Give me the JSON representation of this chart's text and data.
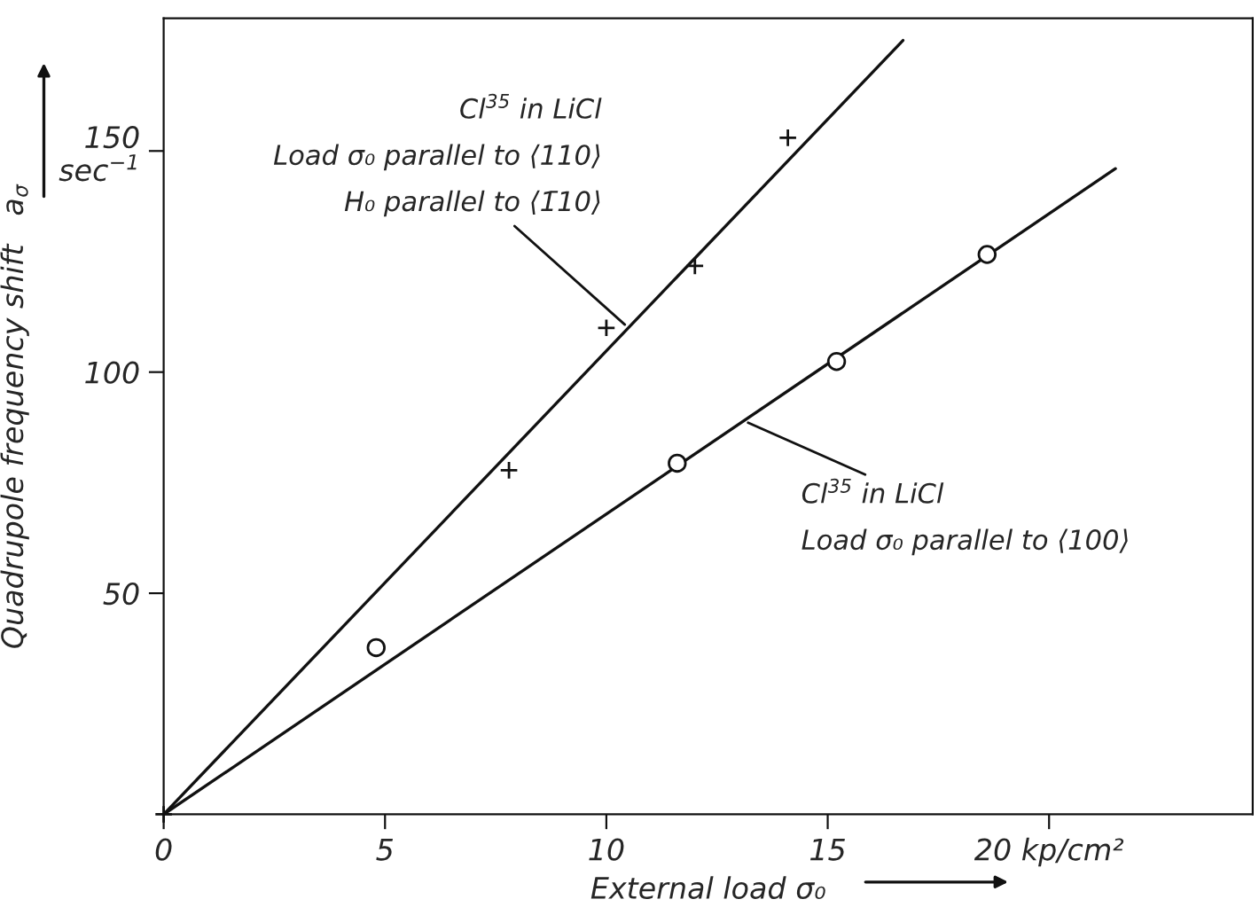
{
  "chart_data": {
    "type": "scatter",
    "xlabel": "External load σ₀",
    "ylabel": "Quadrupole frequency shift   a$_{σ}$",
    "xlim": [
      0,
      24.6
    ],
    "ylim": [
      0,
      180
    ],
    "xticks": [
      0,
      5,
      10,
      15,
      {
        "value": 20,
        "label": "20 kp/cm²"
      }
    ],
    "yticks": [
      {
        "value": 50,
        "label": "50"
      },
      {
        "value": 100,
        "label": "100"
      },
      {
        "value": 150,
        "label": "150\nsec$^{−1}$"
      }
    ],
    "grid": false,
    "series": [
      {
        "marker": "cross",
        "color": "#111111",
        "x": [
          0,
          7.8,
          10.0,
          12.0,
          14.1
        ],
        "values": [
          0,
          77.8,
          110,
          124,
          153
        ]
      },
      {
        "marker": "circle",
        "color": "#111111",
        "x": [
          4.8,
          11.6,
          15.2,
          18.6
        ],
        "values": [
          37.7,
          79.4,
          102.4,
          126.6
        ]
      },
      {
        "type": "line",
        "color": "#111111",
        "x": [
          0,
          16.7
        ],
        "values": [
          0,
          175
        ]
      },
      {
        "type": "line",
        "color": "#111111",
        "x": [
          0,
          21.5
        ],
        "values": [
          0,
          146
        ]
      }
    ],
    "annotations": [
      {
        "text": "Cl$^{35}$ in LiCl\n\nLoad σ₀ parallel to ⟨110⟩\n\nH₀ parallel to ⟨1̄10⟩",
        "x": 10.5,
        "y": 110
      },
      {
        "text": "Cl$^{35}$ in LiCl\n\nLoad σ₀ parallel to ⟨100⟩",
        "x": 13.1,
        "y": 89
      }
    ]
  }
}
